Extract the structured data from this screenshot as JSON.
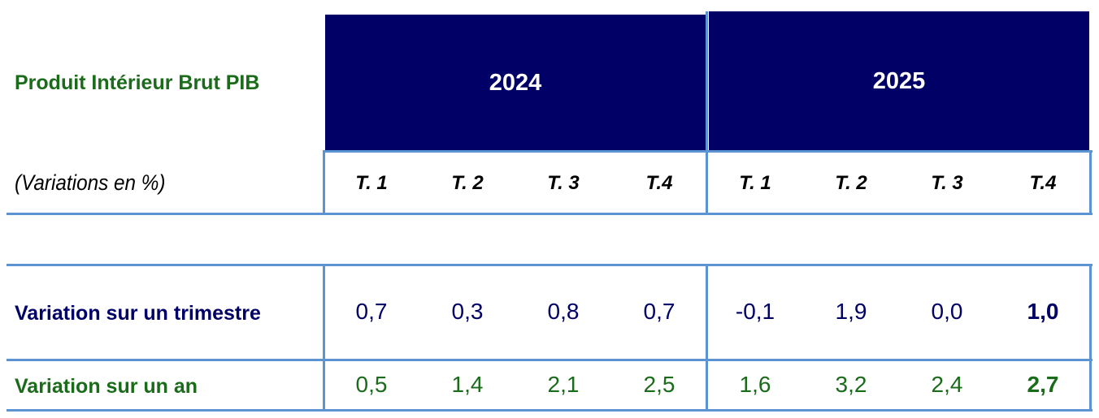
{
  "header": {
    "title": "Produit Intérieur Brut PIB",
    "subtitle": "(Variations en %)",
    "years": [
      "2024",
      "2025"
    ],
    "quarters": [
      "T. 1",
      "T. 2",
      "T. 3",
      "T.4",
      "T. 1",
      "T. 2",
      "T. 3",
      "T.4"
    ]
  },
  "rows": [
    {
      "label": "Variation sur un trimestre",
      "values": [
        "0,7",
        "0,3",
        "0,8",
        "0,7",
        "-0,1",
        "1,9",
        "0,0",
        "1,0"
      ],
      "color": "#000066"
    },
    {
      "label": "Variation sur un an",
      "values": [
        "0,5",
        "1,4",
        "2,1",
        "2,5",
        "1,6",
        "3,2",
        "2,4",
        "2,7"
      ],
      "color": "#1a6b1a"
    }
  ],
  "colors": {
    "header_bg": "#000066",
    "border": "#5b93d3"
  }
}
